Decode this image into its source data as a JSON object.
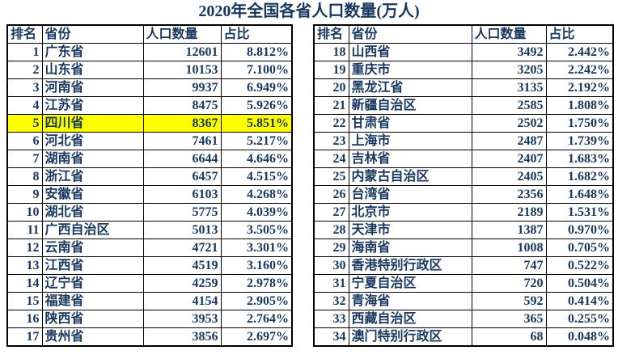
{
  "title": "2020年全国各省人口数量(万人)",
  "colors": {
    "text": "#17375E",
    "border": "#000000",
    "background": "#FFFFFF",
    "highlight": "#FFFF00"
  },
  "highlight": {
    "rank": 5,
    "province": "四川省",
    "color": "#FFFF00"
  },
  "layout": {
    "rows_per_table": 17,
    "legend": "two side-by-side tables, ranks 1-17 left, 18-34 right",
    "grid": true
  },
  "chart_data": {
    "type": "table",
    "title": "2020年全国各省人口数量(万人)",
    "columns": [
      "排名",
      "省份",
      "人口数量",
      "占比"
    ],
    "rows": [
      {
        "rank": 1,
        "province": "广东省",
        "population": 12601,
        "share": "8.812%"
      },
      {
        "rank": 2,
        "province": "山东省",
        "population": 10153,
        "share": "7.100%"
      },
      {
        "rank": 3,
        "province": "河南省",
        "population": 9937,
        "share": "6.949%"
      },
      {
        "rank": 4,
        "province": "江苏省",
        "population": 8475,
        "share": "5.926%"
      },
      {
        "rank": 5,
        "province": "四川省",
        "population": 8367,
        "share": "5.851%"
      },
      {
        "rank": 6,
        "province": "河北省",
        "population": 7461,
        "share": "5.217%"
      },
      {
        "rank": 7,
        "province": "湖南省",
        "population": 6644,
        "share": "4.646%"
      },
      {
        "rank": 8,
        "province": "浙江省",
        "population": 6457,
        "share": "4.515%"
      },
      {
        "rank": 9,
        "province": "安徽省",
        "population": 6103,
        "share": "4.268%"
      },
      {
        "rank": 10,
        "province": "湖北省",
        "population": 5775,
        "share": "4.039%"
      },
      {
        "rank": 11,
        "province": "广西自治区",
        "population": 5013,
        "share": "3.505%"
      },
      {
        "rank": 12,
        "province": "云南省",
        "population": 4721,
        "share": "3.301%"
      },
      {
        "rank": 13,
        "province": "江西省",
        "population": 4519,
        "share": "3.160%"
      },
      {
        "rank": 14,
        "province": "辽宁省",
        "population": 4259,
        "share": "2.978%"
      },
      {
        "rank": 15,
        "province": "福建省",
        "population": 4154,
        "share": "2.905%"
      },
      {
        "rank": 16,
        "province": "陕西省",
        "population": 3953,
        "share": "2.764%"
      },
      {
        "rank": 17,
        "province": "贵州省",
        "population": 3856,
        "share": "2.697%"
      },
      {
        "rank": 18,
        "province": "山西省",
        "population": 3492,
        "share": "2.442%"
      },
      {
        "rank": 19,
        "province": "重庆市",
        "population": 3205,
        "share": "2.242%"
      },
      {
        "rank": 20,
        "province": "黑龙江省",
        "population": 3135,
        "share": "2.192%"
      },
      {
        "rank": 21,
        "province": "新疆自治区",
        "population": 2585,
        "share": "1.808%"
      },
      {
        "rank": 22,
        "province": "甘肃省",
        "population": 2502,
        "share": "1.750%"
      },
      {
        "rank": 23,
        "province": "上海市",
        "population": 2487,
        "share": "1.739%"
      },
      {
        "rank": 24,
        "province": "吉林省",
        "population": 2407,
        "share": "1.683%"
      },
      {
        "rank": 25,
        "province": "内蒙古自治区",
        "population": 2405,
        "share": "1.682%"
      },
      {
        "rank": 26,
        "province": "台湾省",
        "population": 2356,
        "share": "1.648%"
      },
      {
        "rank": 27,
        "province": "北京市",
        "population": 2189,
        "share": "1.531%"
      },
      {
        "rank": 28,
        "province": "天津市",
        "population": 1387,
        "share": "0.970%"
      },
      {
        "rank": 29,
        "province": "海南省",
        "population": 1008,
        "share": "0.705%"
      },
      {
        "rank": 30,
        "province": "香港特别行政区",
        "population": 747,
        "share": "0.522%"
      },
      {
        "rank": 31,
        "province": "宁夏自治区",
        "population": 720,
        "share": "0.504%"
      },
      {
        "rank": 32,
        "province": "青海省",
        "population": 592,
        "share": "0.414%"
      },
      {
        "rank": 33,
        "province": "西藏自治区",
        "population": 365,
        "share": "0.255%"
      },
      {
        "rank": 34,
        "province": "澳门特别行政区",
        "population": 68,
        "share": "0.048%"
      }
    ],
    "highlighted_row": {
      "rank": 5,
      "province": "四川省",
      "background": "#FFFF00"
    }
  }
}
